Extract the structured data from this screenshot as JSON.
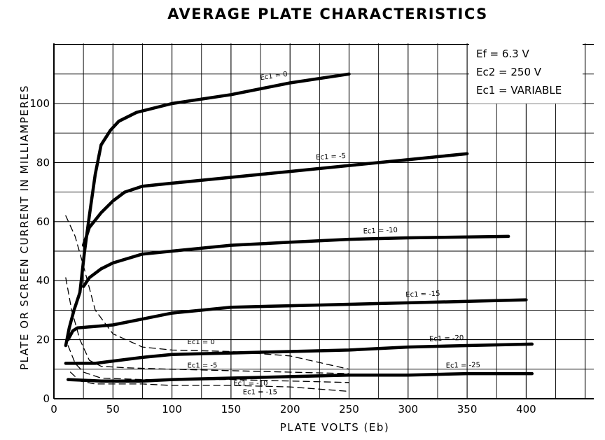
{
  "chart_data": {
    "type": "line",
    "title": "AVERAGE PLATE CHARACTERISTICS",
    "xlabel": "PLATE VOLTS (Eb)",
    "ylabel": "PLATE OR SCREEN CURRENT IN MILLIAMPERES",
    "xlim": [
      0,
      450
    ],
    "ylim": [
      0,
      120
    ],
    "x_ticks": [
      0,
      50,
      100,
      150,
      200,
      250,
      300,
      350,
      400
    ],
    "y_ticks": [
      0,
      20,
      40,
      60,
      80,
      100
    ],
    "grid": true,
    "conditions": [
      "Ef = 6.3 V",
      "Ec2 = 250 V",
      "Ec1 = VARIABLE"
    ],
    "conditions_placement": "top-right",
    "series": [
      {
        "name": "Ec1 = 0",
        "kind": "plate",
        "style": "solid",
        "points": [
          [
            10,
            18
          ],
          [
            13,
            24
          ],
          [
            17,
            30
          ],
          [
            22,
            36
          ],
          [
            26,
            50
          ],
          [
            30,
            62
          ],
          [
            35,
            76
          ],
          [
            40,
            86
          ],
          [
            48,
            91
          ],
          [
            55,
            94
          ],
          [
            70,
            97
          ],
          [
            100,
            100
          ],
          [
            150,
            103
          ],
          [
            200,
            107
          ],
          [
            250,
            110
          ]
        ]
      },
      {
        "name": "Ec1 = -5",
        "kind": "plate",
        "style": "solid",
        "points": [
          [
            25,
            52
          ],
          [
            30,
            58
          ],
          [
            40,
            63
          ],
          [
            50,
            67
          ],
          [
            60,
            70
          ],
          [
            75,
            72
          ],
          [
            100,
            73
          ],
          [
            150,
            75
          ],
          [
            200,
            77
          ],
          [
            250,
            79
          ],
          [
            300,
            81
          ],
          [
            350,
            83
          ]
        ]
      },
      {
        "name": "Ec1 = -10",
        "kind": "plate",
        "style": "solid",
        "points": [
          [
            25,
            38
          ],
          [
            30,
            41
          ],
          [
            40,
            44
          ],
          [
            50,
            46
          ],
          [
            75,
            49
          ],
          [
            100,
            50
          ],
          [
            150,
            52
          ],
          [
            200,
            53
          ],
          [
            250,
            54
          ],
          [
            300,
            54.5
          ],
          [
            385,
            55
          ]
        ]
      },
      {
        "name": "Ec1 = -15",
        "kind": "plate",
        "style": "solid",
        "points": [
          [
            12,
            20
          ],
          [
            16,
            23
          ],
          [
            20,
            24
          ],
          [
            50,
            25
          ],
          [
            75,
            27
          ],
          [
            100,
            29
          ],
          [
            150,
            31
          ],
          [
            200,
            31.5
          ],
          [
            250,
            32
          ],
          [
            300,
            32.5
          ],
          [
            400,
            33.5
          ]
        ]
      },
      {
        "name": "Ec1 = -20",
        "kind": "plate",
        "style": "solid",
        "points": [
          [
            10,
            12
          ],
          [
            35,
            12
          ],
          [
            75,
            14
          ],
          [
            100,
            15
          ],
          [
            150,
            15.5
          ],
          [
            200,
            16
          ],
          [
            250,
            16.5
          ],
          [
            300,
            17.5
          ],
          [
            350,
            18
          ],
          [
            405,
            18.5
          ]
        ]
      },
      {
        "name": "Ec1 = -25",
        "kind": "plate",
        "style": "solid",
        "points": [
          [
            12,
            6.5
          ],
          [
            40,
            6
          ],
          [
            75,
            6
          ],
          [
            100,
            6.5
          ],
          [
            150,
            7
          ],
          [
            200,
            7.5
          ],
          [
            250,
            8
          ],
          [
            300,
            8
          ],
          [
            350,
            8.5
          ],
          [
            405,
            8.5
          ]
        ]
      },
      {
        "name": "Ec1 = 0",
        "kind": "screen",
        "style": "dashed",
        "points": [
          [
            10,
            62
          ],
          [
            18,
            55
          ],
          [
            25,
            45
          ],
          [
            35,
            30
          ],
          [
            50,
            22
          ],
          [
            75,
            17.5
          ],
          [
            100,
            16.5
          ],
          [
            150,
            16
          ],
          [
            200,
            14.5
          ],
          [
            250,
            10
          ]
        ]
      },
      {
        "name": "Ec1 = -5",
        "kind": "screen",
        "style": "dashed",
        "points": [
          [
            10,
            41
          ],
          [
            15,
            30
          ],
          [
            22,
            20
          ],
          [
            30,
            13
          ],
          [
            40,
            11
          ],
          [
            60,
            10.5
          ],
          [
            100,
            10
          ],
          [
            150,
            9.5
          ],
          [
            200,
            9
          ],
          [
            250,
            8.5
          ]
        ]
      },
      {
        "name": "Ec1 = -10",
        "kind": "screen",
        "style": "dashed",
        "points": [
          [
            12,
            18
          ],
          [
            18,
            12
          ],
          [
            25,
            9
          ],
          [
            40,
            7
          ],
          [
            75,
            6.5
          ],
          [
            100,
            6.5
          ],
          [
            150,
            6.5
          ],
          [
            200,
            6
          ],
          [
            250,
            5.5
          ]
        ]
      },
      {
        "name": "Ec1 = -15",
        "kind": "screen",
        "style": "dashed",
        "points": [
          [
            14,
            9
          ],
          [
            22,
            6
          ],
          [
            35,
            5
          ],
          [
            75,
            5
          ],
          [
            100,
            4.5
          ],
          [
            150,
            4.5
          ],
          [
            200,
            4
          ],
          [
            250,
            2.5
          ]
        ]
      }
    ],
    "curve_labels": [
      {
        "text": "Ec1 = 0",
        "x": 175,
        "y": 108,
        "rotate": -8
      },
      {
        "text": "Ec1 = -5",
        "x": 222,
        "y": 81,
        "rotate": -3
      },
      {
        "text": "Ec1 = -10",
        "x": 262,
        "y": 56,
        "rotate": -2
      },
      {
        "text": "Ec1 = -15",
        "x": 298,
        "y": 34.5,
        "rotate": -2
      },
      {
        "text": "Ec1 = -20",
        "x": 318,
        "y": 19.5,
        "rotate": -2
      },
      {
        "text": "Ec1 = -25",
        "x": 332,
        "y": 10.5,
        "rotate": -1
      },
      {
        "text": "Ec1 = 0",
        "x": 113,
        "y": 18.5,
        "rotate": 0
      },
      {
        "text": "Ec1 = -5",
        "x": 113,
        "y": 10.5,
        "rotate": 0
      },
      {
        "text": "Ec1 = -10",
        "x": 152,
        "y": 4.5,
        "rotate": 0
      },
      {
        "text": "Ec1 = -15",
        "x": 160,
        "y": 1.5,
        "rotate": 0
      }
    ]
  }
}
